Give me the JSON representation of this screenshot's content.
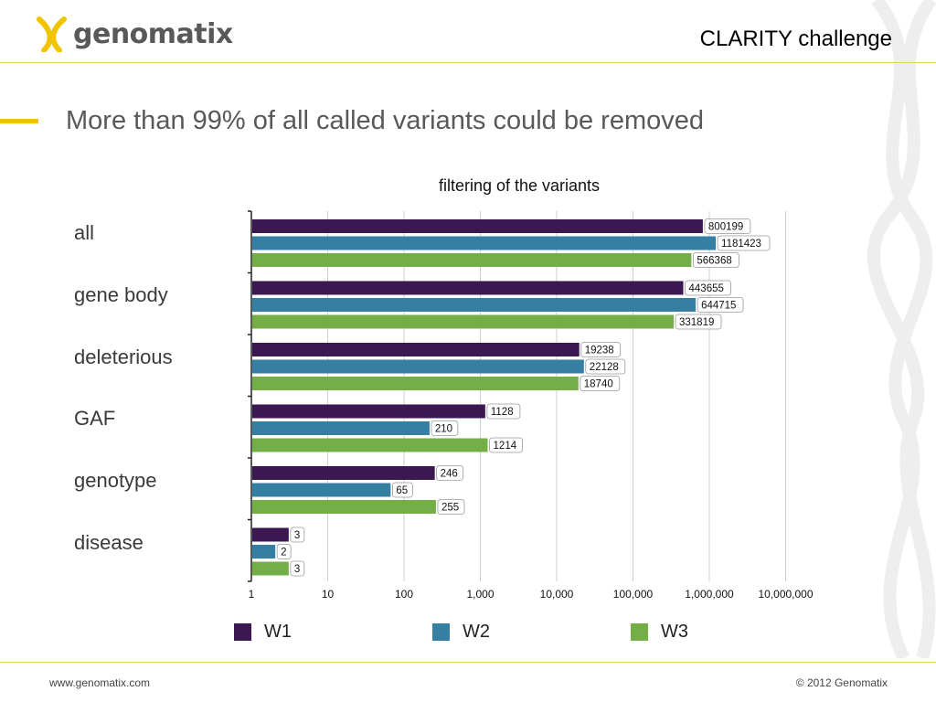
{
  "header": {
    "logo_text": "genomatix",
    "title": "CLARITY challenge"
  },
  "slide": {
    "title": "More than 99% of all called variants could be removed"
  },
  "colors": {
    "accent": "#f0c400",
    "rule": "#e6d24e",
    "W1": "#3b1850",
    "W2": "#3580a2",
    "W3": "#73ae47"
  },
  "chart_data": {
    "type": "bar",
    "orientation": "horizontal",
    "title": "filtering of the variants",
    "xscale": "log",
    "xlim": [
      1,
      10000000
    ],
    "x_ticks": [
      "1",
      "10",
      "100",
      "1,000",
      "10,000",
      "100,000",
      "1,000,000",
      "10,000,000"
    ],
    "categories": [
      "all",
      "gene body",
      "deleterious",
      "GAF",
      "genotype",
      "disease"
    ],
    "series": [
      {
        "name": "W1",
        "values": [
          800199,
          443655,
          19238,
          1128,
          246,
          3
        ]
      },
      {
        "name": "W2",
        "values": [
          1181423,
          644715,
          22128,
          210,
          65,
          2
        ]
      },
      {
        "name": "W3",
        "values": [
          566368,
          331819,
          18740,
          1214,
          255,
          3
        ]
      }
    ],
    "data_labels": true,
    "grid": "vertical",
    "legend": "bottom"
  },
  "footer": {
    "website": "www.genomatix.com",
    "copyright": "© 2012 Genomatix"
  }
}
